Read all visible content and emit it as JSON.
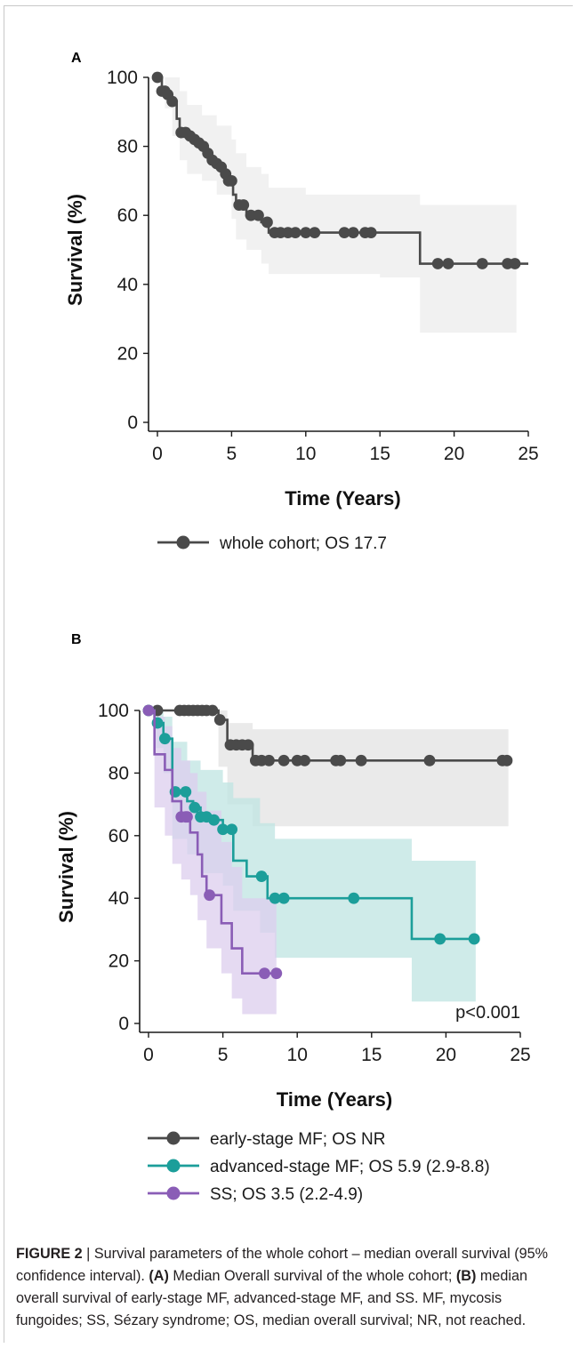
{
  "chart_data": [
    {
      "panel_label": "A",
      "type": "line",
      "xlabel": "Time (Years)",
      "ylabel": "Survival (%)",
      "xlim": [
        0,
        25
      ],
      "ylim": [
        0,
        100
      ],
      "xticks": [
        "0",
        "5",
        "10",
        "15",
        "20",
        "25"
      ],
      "yticks": [
        "0",
        "20",
        "40",
        "60",
        "80",
        "100"
      ],
      "series": [
        {
          "name": "whole cohort; OS 17.7",
          "color": "#4a4a4a",
          "band_color": "#ececec",
          "step_x": [
            0,
            0.3,
            0.6,
            0.9,
            1.3,
            1.5,
            2.0,
            2.3,
            2.6,
            2.9,
            3.2,
            3.5,
            3.8,
            4.2,
            4.5,
            4.8,
            5.1,
            5.3,
            6.0,
            7.0,
            7.5,
            17.7,
            25
          ],
          "step_y": [
            100,
            96,
            95,
            93,
            88,
            84,
            83,
            82,
            81,
            80,
            78,
            76,
            75,
            74,
            72,
            70,
            66,
            63,
            60,
            58,
            55,
            46,
            46
          ],
          "end_x": 24.2,
          "censored_x": [
            0,
            0.3,
            0.5,
            0.7,
            1.0,
            1.6,
            1.9,
            2.2,
            2.5,
            2.8,
            3.1,
            3.4,
            3.7,
            4.0,
            4.3,
            4.6,
            4.8,
            5.0,
            5.5,
            5.8,
            6.3,
            6.8,
            7.4,
            7.9,
            8.3,
            8.8,
            9.3,
            10.0,
            10.6,
            12.6,
            13.2,
            14.0,
            14.4,
            18.9,
            19.6,
            21.9,
            23.6,
            24.1
          ],
          "ci_x": [
            0,
            0.5,
            1.0,
            1.5,
            2.0,
            3.0,
            4.0,
            5.0,
            5.3,
            6.0,
            7.0,
            7.5,
            10.0,
            15.0,
            17.7,
            24.2
          ],
          "ci_upper": [
            100,
            100,
            100,
            96,
            92,
            89,
            86,
            82,
            78,
            74,
            72,
            68,
            66,
            66,
            63,
            63
          ],
          "ci_lower": [
            100,
            91,
            83,
            76,
            72,
            70,
            66,
            59,
            53,
            50,
            46,
            43,
            43,
            42,
            26,
            26
          ]
        }
      ]
    },
    {
      "panel_label": "B",
      "type": "line",
      "xlabel": "Time (Years)",
      "ylabel": "Survival (%)",
      "xlim": [
        0,
        25
      ],
      "ylim": [
        0,
        100
      ],
      "xticks": [
        "0",
        "5",
        "10",
        "15",
        "20",
        "25"
      ],
      "yticks": [
        "0",
        "20",
        "40",
        "60",
        "80",
        "100"
      ],
      "annotation": "p<0.001",
      "series": [
        {
          "name": "early-stage MF; OS NR",
          "color": "#4a4a4a",
          "band_color": "#e3e3e3",
          "step_x": [
            0,
            4.7,
            5.3,
            7.0,
            24.2
          ],
          "step_y": [
            100,
            97,
            89,
            84,
            84
          ],
          "end_x": 24.2,
          "censored_x": [
            0,
            0.6,
            2.1,
            2.4,
            2.7,
            3.0,
            3.3,
            3.6,
            3.9,
            4.3,
            4.8,
            5.5,
            5.9,
            6.3,
            6.7,
            7.2,
            7.6,
            8.1,
            9.1,
            10.0,
            10.5,
            12.6,
            12.9,
            14.3,
            18.9,
            23.8,
            24.1
          ],
          "ci_x": [
            0,
            4.7,
            5.3,
            7.0,
            24.2
          ],
          "ci_upper": [
            100,
            100,
            96,
            94,
            94
          ],
          "ci_lower": [
            100,
            82,
            70,
            63,
            63
          ]
        },
        {
          "name": "advanced-stage MF; OS 5.9 (2.9-8.8)",
          "color": "#1c9e9a",
          "band_color": "#bfe4e2",
          "step_x": [
            0,
            0.4,
            1.0,
            1.6,
            2.6,
            3.0,
            3.5,
            4.2,
            5.0,
            5.7,
            6.6,
            7.3,
            8.0,
            15.6,
            17.7,
            22.0
          ],
          "step_y": [
            100,
            96,
            91,
            74,
            71,
            69,
            66,
            65,
            62,
            52,
            47,
            47,
            40,
            40,
            27,
            27
          ],
          "end_x": 22.0,
          "censored_x": [
            0,
            0.6,
            1.1,
            1.8,
            2.5,
            3.1,
            3.5,
            3.9,
            4.4,
            5.0,
            5.6,
            7.6,
            8.5,
            9.1,
            13.8,
            19.6,
            21.9
          ],
          "ci_x": [
            0,
            0.5,
            1.0,
            1.6,
            2.6,
            3.5,
            5.0,
            5.7,
            7.5,
            8.5,
            15.6,
            17.7,
            22.0
          ],
          "ci_upper": [
            100,
            100,
            98,
            90,
            84,
            81,
            77,
            72,
            64,
            59,
            59,
            52,
            52
          ],
          "ci_lower": [
            100,
            88,
            80,
            59,
            54,
            48,
            44,
            36,
            29,
            21,
            21,
            7,
            7
          ]
        },
        {
          "name": "SS; OS 3.5 (2.2-4.9)",
          "color": "#8a5db6",
          "band_color": "#dccdee",
          "step_x": [
            0,
            0.4,
            1.1,
            1.6,
            2.2,
            2.8,
            3.3,
            3.6,
            3.9,
            4.9,
            5.6,
            6.3,
            8.6
          ],
          "step_y": [
            100,
            86,
            81,
            71,
            66,
            61,
            54,
            47,
            41,
            32,
            24,
            16,
            16
          ],
          "end_x": 8.6,
          "censored_x": [
            0,
            2.2,
            2.5,
            2.6,
            4.1,
            7.8,
            8.6
          ],
          "ci_x": [
            0,
            0.4,
            1.1,
            1.6,
            2.2,
            2.8,
            3.3,
            3.9,
            4.9,
            5.6,
            6.3,
            8.6
          ],
          "ci_upper": [
            100,
            98,
            95,
            88,
            84,
            80,
            74,
            68,
            58,
            50,
            40,
            40
          ],
          "ci_lower": [
            100,
            69,
            60,
            51,
            46,
            41,
            33,
            24,
            16,
            8,
            3,
            3
          ]
        }
      ]
    }
  ],
  "caption": {
    "figure_label": "FIGURE 2",
    "separator": "|",
    "text1": "Survival parameters of the whole cohort – median overall survival (95% confidence interval).",
    "label_a": "(A)",
    "text2": "Median Overall survival of the whole cohort;",
    "label_b": "(B)",
    "text3": "median overall survival of early-stage MF, advanced-stage MF, and SS. MF, mycosis fungoides; SS, Sézary syndrome; OS, median overall survival; NR, not reached."
  }
}
